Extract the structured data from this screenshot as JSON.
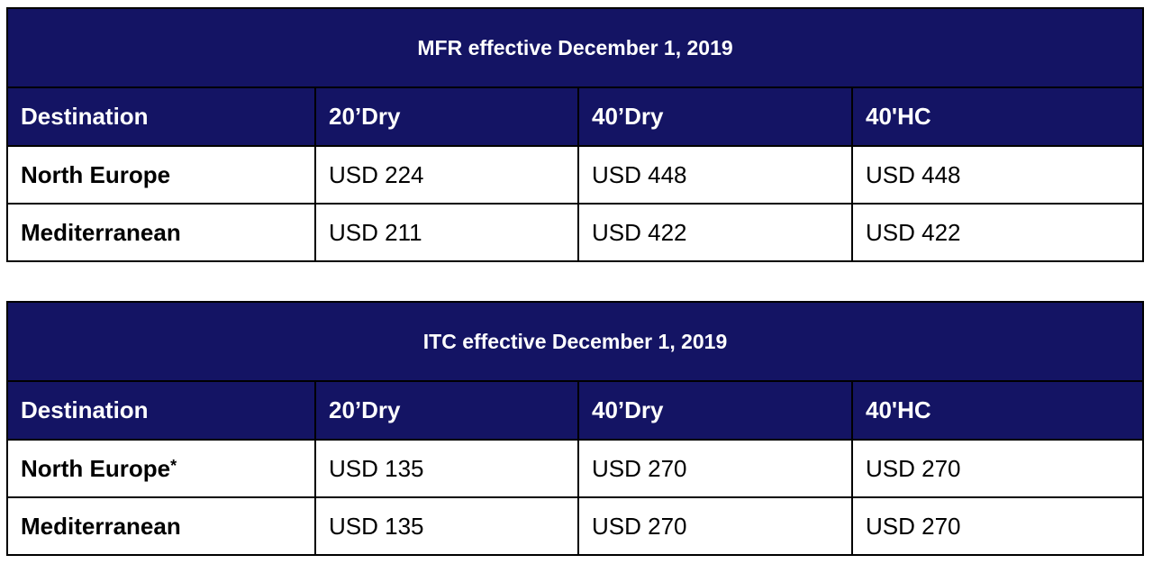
{
  "tables": [
    {
      "title": "MFR effective December 1, 2019",
      "headers": [
        "Destination",
        "20’Dry",
        "40’Dry",
        "40'HC"
      ],
      "rows": [
        {
          "destination": "North Europe",
          "marker": "",
          "values": [
            "USD 224",
            "USD 448",
            "USD 448"
          ]
        },
        {
          "destination": "Mediterranean",
          "marker": "",
          "values": [
            "USD 211",
            "USD 422",
            "USD 422"
          ]
        }
      ]
    },
    {
      "title": "ITC effective December 1, 2019",
      "headers": [
        "Destination",
        "20’Dry",
        "40’Dry",
        "40'HC"
      ],
      "rows": [
        {
          "destination": "North Europe",
          "marker": "*",
          "values": [
            "USD 135",
            "USD 270",
            "USD 270"
          ]
        },
        {
          "destination": "Mediterranean",
          "marker": "",
          "values": [
            "USD 135",
            "USD 270",
            "USD 270"
          ]
        }
      ]
    }
  ],
  "colors": {
    "header_bg": "#141464",
    "header_text": "#ffffff",
    "border": "#000000"
  }
}
